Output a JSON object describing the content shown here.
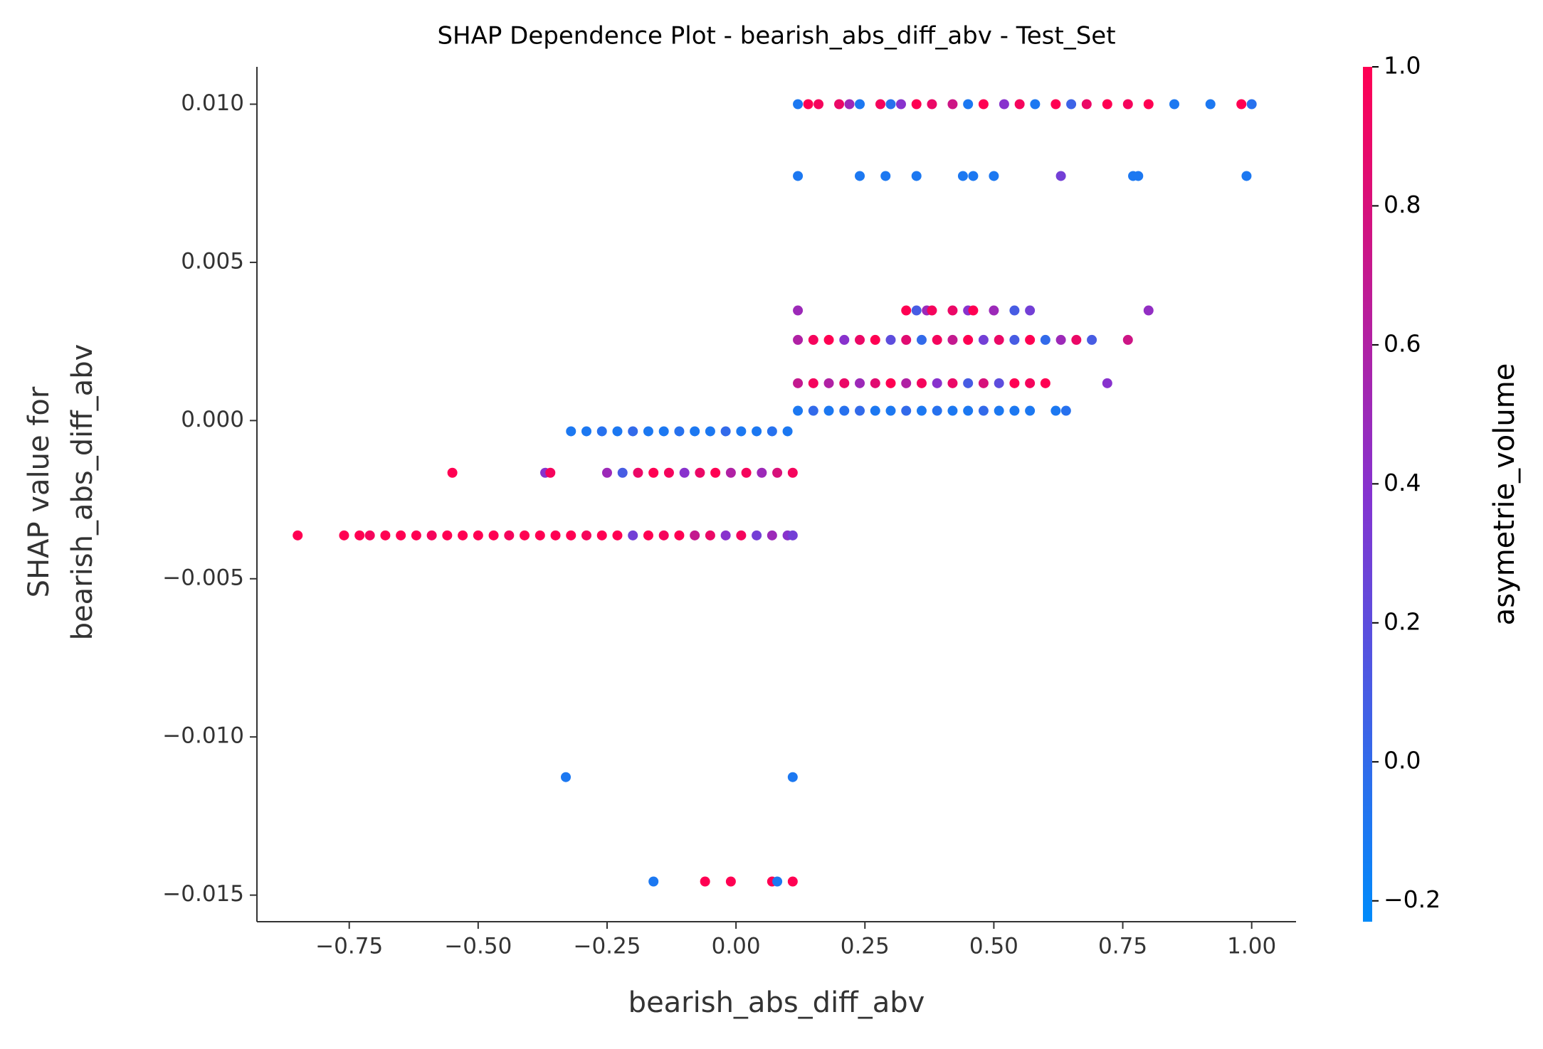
{
  "chart_data": {
    "type": "scatter",
    "title": "SHAP Dependence Plot - bearish_abs_diff_abv - Test_Set",
    "xlabel": "bearish_abs_diff_abv",
    "ylabel": [
      "SHAP value for",
      "bearish_abs_diff_abv"
    ],
    "colorbar_label": "asymetrie_volume",
    "xlim": [
      -0.929,
      1.086
    ],
    "ylim": [
      -0.01584,
      0.01118
    ],
    "clim": [
      -0.23,
      1.0
    ],
    "xticks": [
      {
        "value": -0.75,
        "label": "−0.75"
      },
      {
        "value": -0.5,
        "label": "−0.50"
      },
      {
        "value": -0.25,
        "label": "−0.25"
      },
      {
        "value": 0,
        "label": "0.00"
      },
      0.25,
      {
        "value": 0.5,
        "label": "0.50"
      },
      0.75,
      {
        "value": 1,
        "label": "1.00"
      }
    ],
    "yticks": [
      {
        "value": -0.015,
        "label": "−0.015"
      },
      {
        "value": -0.01,
        "label": "−0.010"
      },
      {
        "value": -0.005,
        "label": "−0.005"
      },
      {
        "value": 0,
        "label": "0.000"
      },
      0.005,
      {
        "value": 0.01,
        "label": "0.010"
      }
    ],
    "cticks": [
      {
        "value": -0.2,
        "label": "−0.2"
      },
      {
        "value": 0,
        "label": "0.0"
      },
      0.2,
      0.4,
      0.6,
      0.8,
      {
        "value": 1,
        "label": "1.0"
      }
    ],
    "x": [
      0.12,
      0.14,
      0.16,
      0.2,
      0.22,
      0.24,
      0.28,
      0.3,
      0.32,
      0.35,
      0.38,
      0.42,
      0.45,
      0.48,
      0.52,
      0.55,
      0.58,
      0.62,
      0.65,
      0.68,
      0.72,
      0.76,
      0.8,
      0.85,
      0.92,
      0.98,
      1.0,
      0.12,
      0.24,
      0.29,
      0.35,
      0.44,
      0.46,
      0.5,
      0.63,
      0.77,
      0.78,
      0.99,
      0.12,
      0.33,
      0.35,
      0.37,
      0.38,
      0.42,
      0.45,
      0.46,
      0.5,
      0.54,
      0.57,
      0.8,
      0.12,
      0.15,
      0.18,
      0.21,
      0.24,
      0.27,
      0.3,
      0.33,
      0.36,
      0.39,
      0.42,
      0.45,
      0.48,
      0.51,
      0.54,
      0.57,
      0.6,
      0.63,
      0.66,
      0.69,
      0.76,
      0.12,
      0.15,
      0.18,
      0.21,
      0.24,
      0.27,
      0.3,
      0.33,
      0.36,
      0.39,
      0.42,
      0.45,
      0.48,
      0.51,
      0.54,
      0.57,
      0.6,
      0.72,
      0.12,
      0.15,
      0.18,
      0.21,
      0.24,
      0.27,
      0.3,
      0.33,
      0.36,
      0.39,
      0.42,
      0.45,
      0.48,
      0.51,
      0.54,
      0.57,
      0.62,
      0.64,
      -0.32,
      -0.29,
      -0.26,
      -0.23,
      -0.2,
      -0.17,
      -0.14,
      -0.11,
      -0.08,
      -0.05,
      -0.02,
      0.01,
      0.04,
      0.07,
      0.1,
      -0.55,
      -0.37,
      -0.36,
      -0.25,
      -0.22,
      -0.19,
      -0.16,
      -0.13,
      -0.1,
      -0.07,
      -0.04,
      -0.01,
      0.02,
      0.05,
      0.08,
      0.11,
      -0.85,
      -0.76,
      -0.73,
      -0.71,
      -0.68,
      -0.65,
      -0.62,
      -0.59,
      -0.56,
      -0.53,
      -0.5,
      -0.47,
      -0.44,
      -0.41,
      -0.38,
      -0.35,
      -0.32,
      -0.29,
      -0.26,
      -0.23,
      -0.2,
      -0.17,
      -0.14,
      -0.11,
      -0.08,
      -0.05,
      -0.02,
      0.01,
      0.04,
      0.07,
      0.1,
      0.11,
      -0.33,
      0.11,
      -0.16,
      -0.06,
      -0.01,
      0.07,
      0.08,
      0.11
    ],
    "values": [
      0.01,
      0.01,
      0.01,
      0.01,
      0.01,
      0.01,
      0.01,
      0.01,
      0.01,
      0.01,
      0.01,
      0.01,
      0.01,
      0.01,
      0.01,
      0.01,
      0.01,
      0.01,
      0.01,
      0.01,
      0.01,
      0.01,
      0.01,
      0.01,
      0.01,
      0.01,
      0.01,
      0.00773,
      0.00773,
      0.00773,
      0.00773,
      0.00773,
      0.00773,
      0.00773,
      0.00773,
      0.00773,
      0.00773,
      0.00773,
      0.00348,
      0.00348,
      0.00348,
      0.00348,
      0.00348,
      0.00348,
      0.00348,
      0.00348,
      0.00348,
      0.00348,
      0.00348,
      0.00348,
      0.00255,
      0.00255,
      0.00255,
      0.00255,
      0.00255,
      0.00255,
      0.00255,
      0.00255,
      0.00255,
      0.00255,
      0.00255,
      0.00255,
      0.00255,
      0.00255,
      0.00255,
      0.00255,
      0.00255,
      0.00255,
      0.00255,
      0.00255,
      0.00255,
      0.00118,
      0.00118,
      0.00118,
      0.00118,
      0.00118,
      0.00118,
      0.00118,
      0.00118,
      0.00118,
      0.00118,
      0.00118,
      0.00118,
      0.00118,
      0.00118,
      0.00118,
      0.00118,
      0.00118,
      0.00118,
      0.00031,
      0.00031,
      0.00031,
      0.00031,
      0.00031,
      0.00031,
      0.00031,
      0.00031,
      0.00031,
      0.00031,
      0.00031,
      0.00031,
      0.00031,
      0.00031,
      0.00031,
      0.00031,
      0.00031,
      0.00031,
      -0.00034,
      -0.00034,
      -0.00034,
      -0.00034,
      -0.00034,
      -0.00034,
      -0.00034,
      -0.00034,
      -0.00034,
      -0.00034,
      -0.00034,
      -0.00034,
      -0.00034,
      -0.00034,
      -0.00034,
      -0.00165,
      -0.00165,
      -0.00165,
      -0.00165,
      -0.00165,
      -0.00165,
      -0.00165,
      -0.00165,
      -0.00165,
      -0.00165,
      -0.00165,
      -0.00165,
      -0.00165,
      -0.00165,
      -0.00165,
      -0.00165,
      -0.00363,
      -0.00363,
      -0.00363,
      -0.00363,
      -0.00363,
      -0.00363,
      -0.00363,
      -0.00363,
      -0.00363,
      -0.00363,
      -0.00363,
      -0.00363,
      -0.00363,
      -0.00363,
      -0.00363,
      -0.00363,
      -0.00363,
      -0.00363,
      -0.00363,
      -0.00363,
      -0.00363,
      -0.00363,
      -0.00363,
      -0.00363,
      -0.00363,
      -0.00363,
      -0.00363,
      -0.00363,
      -0.00363,
      -0.00363,
      -0.00363,
      -0.00363,
      -0.01127,
      -0.01127,
      -0.01457,
      -0.01457,
      -0.01457,
      -0.01457,
      -0.01457,
      -0.01457
    ],
    "color_values": [
      -0.1,
      1,
      0.95,
      0.9,
      0.5,
      -0.1,
      0.95,
      -0.05,
      0.4,
      1,
      0.9,
      0.75,
      -0.1,
      1,
      0.4,
      0.95,
      -0.1,
      1,
      0.05,
      0.9,
      1,
      0.95,
      1,
      -0.1,
      -0.1,
      1,
      -0.05,
      -0.1,
      -0.1,
      -0.1,
      -0.1,
      -0.1,
      -0.1,
      -0.1,
      0.3,
      -0.1,
      -0.1,
      -0.1,
      0.5,
      1,
      0.1,
      0.5,
      0.95,
      0.9,
      0.4,
      1,
      0.5,
      0.1,
      0.3,
      0.45,
      0.6,
      0.95,
      1,
      0.4,
      0.9,
      1,
      0.2,
      0.85,
      0,
      0.95,
      0.7,
      1,
      0.3,
      0.9,
      0.1,
      1,
      0,
      0.5,
      0.9,
      0.1,
      0.75,
      0.7,
      0.95,
      0.6,
      0.9,
      0.5,
      0.85,
      1,
      0.6,
      0.95,
      0.4,
      0.9,
      0.1,
      0.8,
      0.2,
      1,
      0.95,
      1,
      0.4,
      -0.1,
      0,
      -0.1,
      -0.05,
      0,
      -0.1,
      -0.1,
      0,
      -0.1,
      -0.05,
      -0.1,
      -0.1,
      0,
      -0.1,
      -0.1,
      -0.1,
      -0.1,
      -0.05,
      -0.1,
      -0.1,
      -0.05,
      -0.1,
      0,
      -0.1,
      -0.1,
      -0.05,
      -0.1,
      -0.1,
      0,
      -0.1,
      -0.1,
      -0.05,
      -0.1,
      1,
      0.4,
      0.95,
      0.5,
      0.1,
      0.9,
      1,
      0.95,
      0.4,
      0.9,
      1,
      0.6,
      0.95,
      0.5,
      0.8,
      0.95,
      1,
      1,
      1,
      0.95,
      1,
      1,
      1,
      0.95,
      1,
      1,
      1,
      1,
      0.95,
      1,
      1,
      1,
      1,
      0.95,
      1,
      1,
      0.3,
      1,
      0.95,
      1,
      0.7,
      0.9,
      0.4,
      0.95,
      0.3,
      0.5,
      0.4,
      0.3,
      -0.1,
      -0.1,
      -0.1,
      1,
      1,
      1,
      -0.1,
      1
    ]
  }
}
